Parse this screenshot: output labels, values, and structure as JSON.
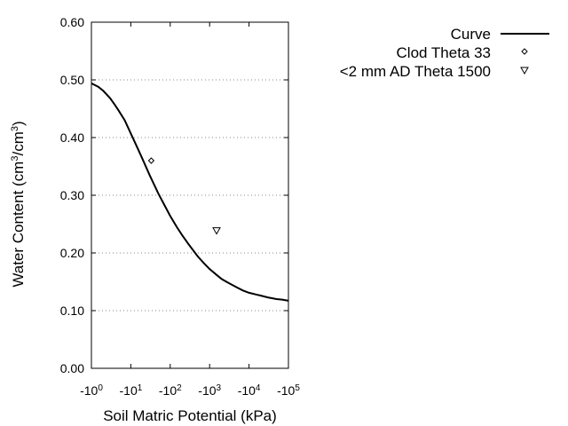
{
  "chart_data": {
    "type": "line",
    "xlabel": "Soil Matric Potential (kPa)",
    "ylabel": {
      "prefix": "Water Content (cm",
      "sup1": "3",
      "mid": "/cm",
      "sup2": "3",
      "suffix": ")"
    },
    "x_scale": "log",
    "x_range": [
      1,
      100000
    ],
    "ylim": [
      0,
      0.6
    ],
    "grid": "horizontal-dotted",
    "legend_position": "top-right-outside",
    "x_ticks": [
      {
        "value": 1,
        "base": "-10",
        "exp": "0"
      },
      {
        "value": 10,
        "base": "-10",
        "exp": "1"
      },
      {
        "value": 100,
        "base": "-10",
        "exp": "2"
      },
      {
        "value": 1000,
        "base": "-10",
        "exp": "3"
      },
      {
        "value": 10000,
        "base": "-10",
        "exp": "4"
      },
      {
        "value": 100000,
        "base": "-10",
        "exp": "5"
      }
    ],
    "y_ticks": [
      {
        "value": 0,
        "label": "0.00"
      },
      {
        "value": 0.1,
        "label": "0.10"
      },
      {
        "value": 0.2,
        "label": "0.20"
      },
      {
        "value": 0.3,
        "label": "0.30"
      },
      {
        "value": 0.4,
        "label": "0.40"
      },
      {
        "value": 0.5,
        "label": "0.50"
      },
      {
        "value": 0.6,
        "label": "0.60"
      }
    ],
    "series": [
      {
        "name": "Curve",
        "style": "line",
        "color": "#000000",
        "x": [
          1,
          1.5,
          2,
          3,
          4,
          5,
          7,
          10,
          15,
          20,
          30,
          50,
          70,
          100,
          150,
          200,
          300,
          500,
          700,
          1000,
          1500,
          2000,
          3000,
          5000,
          7000,
          10000,
          15000,
          20000,
          30000,
          50000,
          70000,
          100000
        ],
        "y": [
          0.494,
          0.488,
          0.481,
          0.468,
          0.456,
          0.446,
          0.43,
          0.407,
          0.381,
          0.362,
          0.335,
          0.303,
          0.284,
          0.264,
          0.244,
          0.231,
          0.214,
          0.194,
          0.183,
          0.172,
          0.162,
          0.155,
          0.148,
          0.14,
          0.135,
          0.131,
          0.128,
          0.126,
          0.123,
          0.12,
          0.119,
          0.117
        ]
      },
      {
        "name": "Clod Theta 33",
        "style": "marker-diamond",
        "color": "#000000",
        "x": [
          33
        ],
        "y": [
          0.36
        ]
      },
      {
        "name": "<2 mm AD Theta 1500",
        "style": "marker-triangle-down",
        "color": "#000000",
        "x": [
          1500
        ],
        "y": [
          0.239
        ]
      }
    ]
  }
}
